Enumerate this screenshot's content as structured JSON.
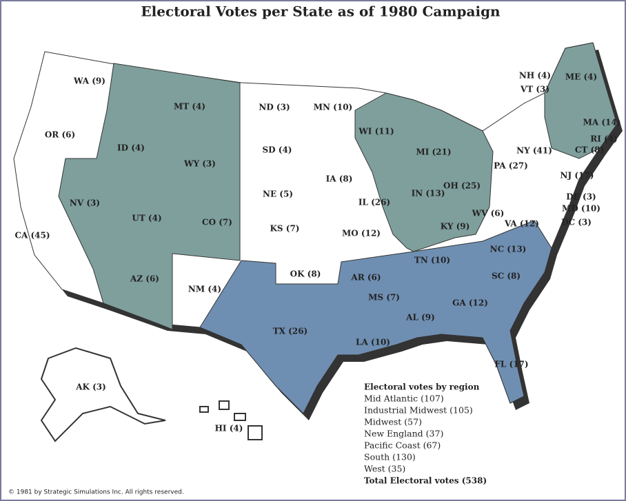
{
  "title": "Electoral Votes per State as of 1980 Campaign",
  "states": [
    "WA (9)",
    "OR (6)",
    "CA (45)",
    "MT (4)",
    "ID (4)",
    "WY (3)",
    "NV (3)",
    "UT (4)",
    "CO (7)",
    "AZ (6)",
    "NM (4)",
    "ND (3)",
    "MN (10)",
    "SD (4)",
    "NE (5)",
    "KS (7)",
    "OK (8)",
    "TX (26)",
    "IA (8)",
    "MO (12)",
    "AR (6)",
    "LA (10)",
    "MS (7)",
    "AL (9)",
    "TN (10)",
    "GA (12)",
    "SC (8)",
    "NC (13)",
    "FL (17)",
    "VA (12)",
    "WV (6)",
    "KY (9)",
    "OH (25)",
    "IN (13)",
    "IL (26)",
    "MI (21)",
    "WI (11)",
    "PA (27)",
    "NY (41)",
    "NJ (17)",
    "DE (3)",
    "MD (10)",
    "DC (3)",
    "CT (8)",
    "RI (4)",
    "MA (14)",
    "VT (3)",
    "NH (4)",
    "ME (4)",
    "AK (3)",
    "HI (4)"
  ],
  "legend": {
    "title": "Electoral votes by region",
    "items": [
      "Mid Atlantic (107)",
      "Industrial Midwest (105)",
      "Midwest (57)",
      "New England (37)",
      "Pacific Coast (67)",
      "South (130)",
      "West (35)"
    ],
    "total": "Total Electoral votes (538)"
  },
  "copyright": "© 1981 by Strategic Simulations Inc. All rights reserved."
}
